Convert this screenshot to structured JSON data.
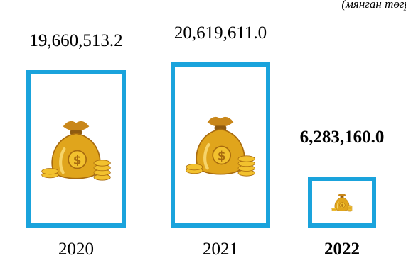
{
  "unit_label": "(мянган төгр",
  "chart_data": {
    "type": "bar",
    "categories": [
      "2020",
      "2021",
      "2022"
    ],
    "values": [
      19660513.2,
      20619611.0,
      6283160.0
    ],
    "value_labels": [
      "19,660,513.2",
      "20,619,611.0",
      "6,283,160.0"
    ],
    "highlight_category": "2022",
    "colors": {
      "bar_border": "#1aa3dc",
      "bag": "#e0a51c",
      "coin": "#f2c12e"
    },
    "icon": "money-bag-icon"
  }
}
